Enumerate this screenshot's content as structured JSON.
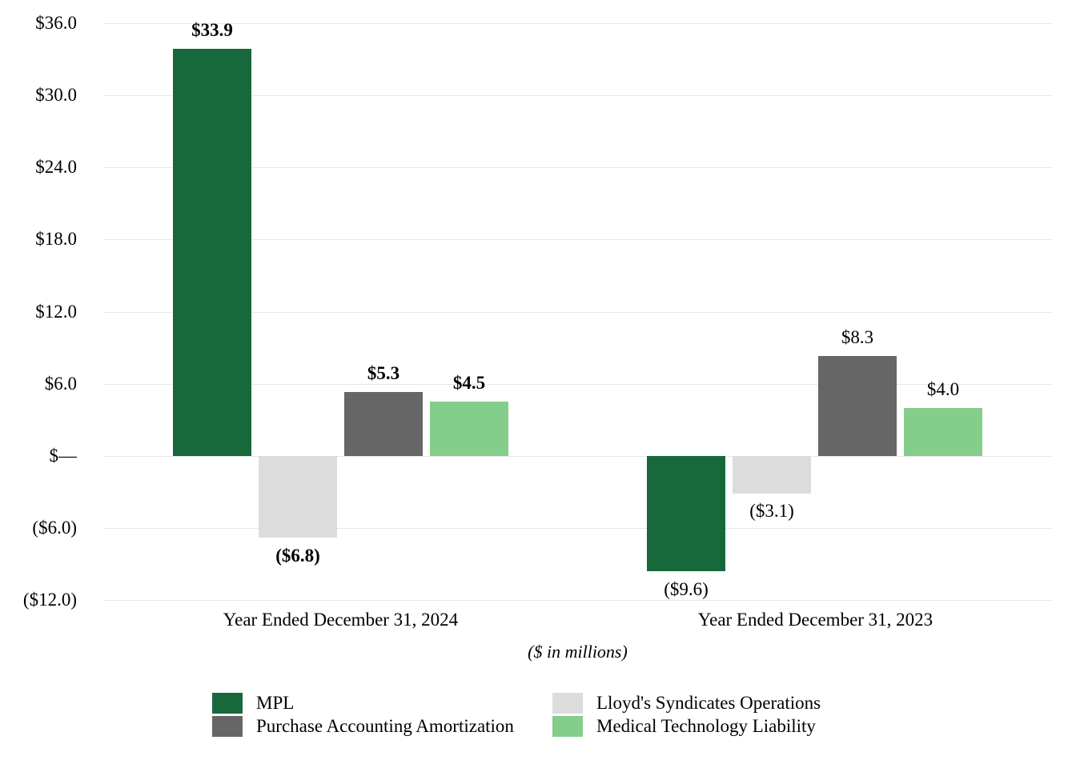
{
  "chart_data": {
    "type": "bar",
    "title": "",
    "unit_note": "($ in millions)",
    "categories": [
      "Year Ended December 31, 2024",
      "Year Ended December 31, 2023"
    ],
    "category_label_bold": [
      true,
      false
    ],
    "series": [
      {
        "name": "MPL",
        "color": "#17683B",
        "values": [
          33.9,
          -9.6
        ],
        "data_labels": [
          "$33.9",
          "($9.6)"
        ]
      },
      {
        "name": "Lloyd's Syndicates Operations",
        "color": "#DCDCDC",
        "values": [
          -6.8,
          -3.1
        ],
        "data_labels": [
          "($6.8)",
          "($3.1)"
        ]
      },
      {
        "name": "Purchase Accounting Amortization",
        "color": "#666666",
        "values": [
          5.3,
          8.3
        ],
        "data_labels": [
          "$5.3",
          "$8.3"
        ]
      },
      {
        "name": "Medical Technology Liability",
        "color": "#85CD8B",
        "values": [
          4.5,
          4.0
        ],
        "data_labels": [
          "$4.5",
          "$4.0"
        ]
      }
    ],
    "y_ticks": [
      {
        "value": 36,
        "label": "$36.0"
      },
      {
        "value": 30,
        "label": "$30.0"
      },
      {
        "value": 24,
        "label": "$24.0"
      },
      {
        "value": 18,
        "label": "$18.0"
      },
      {
        "value": 12,
        "label": "$12.0"
      },
      {
        "value": 6,
        "label": "$6.0"
      },
      {
        "value": 0,
        "label": "$—"
      },
      {
        "value": -6,
        "label": "($6.0)"
      },
      {
        "value": -12,
        "label": "($12.0)"
      }
    ],
    "ylim": [
      -12,
      36
    ],
    "grid": true,
    "legend_position": "bottom",
    "legend_columns": 2,
    "colors": {
      "gridline": "#E7E7E7",
      "text": "#000000",
      "background": "#FFFFFF"
    }
  }
}
